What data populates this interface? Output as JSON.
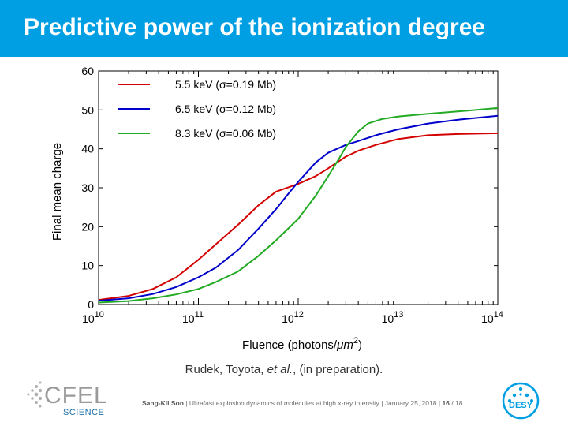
{
  "slide": {
    "title": "Predictive power of the ionization degree",
    "caption_prefix": "Rudek, Toyota, ",
    "caption_italic": "et al.",
    "caption_suffix": ", (in preparation).",
    "footer": {
      "author": "Sang-Kil Son",
      "talk": "Ultrafast explosion dynamics of molecules at high x-ray intensity",
      "date": "January 25, 2018",
      "page": "16",
      "total": "18",
      "sep": "|",
      "slash": "/"
    },
    "logos": {
      "cfel_text": "CFEL",
      "cfel_sub": "SCIENCE",
      "desy_text": "DESY"
    },
    "colors": {
      "title_bar": "#009fe3",
      "desy_blue": "#009fe3"
    }
  },
  "chart_data": {
    "type": "line",
    "xlabel": "Fluence (photons/μm²)",
    "xlabel_main": "Fluence (photons/",
    "xlabel_unit": "μm",
    "xlabel_sup": "2",
    "xlabel_end": ")",
    "ylabel": "Final mean charge",
    "x_scale": "log",
    "xlim": [
      10000000000.0,
      100000000000000.0
    ],
    "ylim": [
      0,
      60
    ],
    "x_ticks": [
      {
        "base": "10",
        "exp": "10",
        "value": 10000000000.0
      },
      {
        "base": "10",
        "exp": "11",
        "value": 100000000000.0
      },
      {
        "base": "10",
        "exp": "12",
        "value": 1000000000000.0
      },
      {
        "base": "10",
        "exp": "13",
        "value": 10000000000000.0
      },
      {
        "base": "10",
        "exp": "14",
        "value": 100000000000000.0
      }
    ],
    "y_ticks": [
      "0",
      "10",
      "20",
      "30",
      "40",
      "50",
      "60"
    ],
    "legend_position": "top-left",
    "grid": false,
    "series": [
      {
        "name": "5.5 keV (σ=0.19 Mb)",
        "color": "#d40000",
        "x": [
          10000000000.0,
          20000000000.0,
          35000000000.0,
          60000000000.0,
          100000000000.0,
          150000000000.0,
          250000000000.0,
          400000000000.0,
          600000000000.0,
          1000000000000.0,
          1500000000000.0,
          2000000000000.0,
          3000000000000.0,
          4000000000000.0,
          6000000000000.0,
          10000000000000.0,
          20000000000000.0,
          40000000000000.0,
          100000000000000.0
        ],
        "y": [
          1.2,
          2.2,
          4.0,
          7.0,
          11.5,
          15.5,
          20.5,
          25.5,
          29.0,
          31.0,
          33.0,
          35.0,
          38.0,
          39.5,
          41.0,
          42.5,
          43.5,
          43.8,
          44.0
        ]
      },
      {
        "name": "6.5 keV (σ=0.12 Mb)",
        "color": "#0000cc",
        "x": [
          10000000000.0,
          20000000000.0,
          35000000000.0,
          60000000000.0,
          100000000000.0,
          150000000000.0,
          250000000000.0,
          400000000000.0,
          600000000000.0,
          800000000000.0,
          1000000000000.0,
          1500000000000.0,
          2000000000000.0,
          3000000000000.0,
          4000000000000.0,
          6000000000000.0,
          10000000000000.0,
          20000000000000.0,
          40000000000000.0,
          100000000000000.0
        ],
        "y": [
          1.0,
          1.6,
          2.7,
          4.5,
          7.0,
          9.5,
          14.0,
          19.5,
          24.5,
          28.5,
          31.5,
          36.5,
          39.0,
          41.0,
          42.0,
          43.5,
          45.0,
          46.5,
          47.5,
          48.5
        ]
      },
      {
        "name": "8.3 keV (σ=0.06 Mb)",
        "color": "#22aa22",
        "x": [
          10000000000.0,
          20000000000.0,
          35000000000.0,
          60000000000.0,
          100000000000.0,
          150000000000.0,
          250000000000.0,
          400000000000.0,
          600000000000.0,
          1000000000000.0,
          1500000000000.0,
          2000000000000.0,
          2500000000000.0,
          3000000000000.0,
          4000000000000.0,
          5000000000000.0,
          7000000000000.0,
          10000000000000.0,
          20000000000000.0,
          50000000000000.0,
          100000000000000.0
        ],
        "y": [
          0.5,
          0.9,
          1.6,
          2.6,
          4.0,
          5.8,
          8.5,
          12.5,
          16.5,
          22.0,
          28.0,
          33.0,
          37.0,
          40.5,
          44.5,
          46.5,
          47.7,
          48.3,
          49.0,
          49.8,
          50.5
        ]
      }
    ]
  }
}
